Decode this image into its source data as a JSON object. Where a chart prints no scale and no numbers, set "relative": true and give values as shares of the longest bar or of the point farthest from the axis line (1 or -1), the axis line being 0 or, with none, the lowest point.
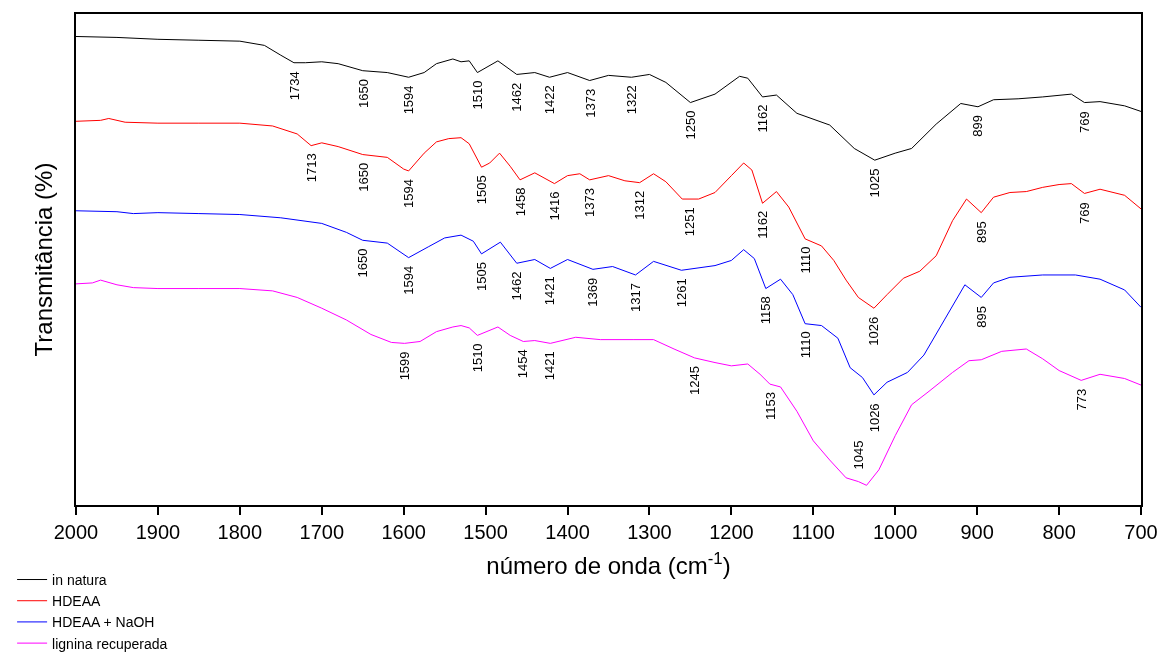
{
  "chart_data": {
    "type": "line",
    "xlabel": "número de onda (cm$^{-1}$)",
    "ylabel": "Transmitância (%)",
    "relative": true,
    "xlim": [
      2000,
      700
    ],
    "xticks": [
      2000,
      1900,
      1800,
      1700,
      1600,
      1500,
      1400,
      1300,
      1200,
      1100,
      1000,
      900,
      800,
      700
    ],
    "legend": "bottom left",
    "tick_labels": "x",
    "marker": "none",
    "line_style": "solid",
    "series": [
      {
        "name": "in natura",
        "color": "#000000",
        "x": [
          2000,
          1950,
          1900,
          1850,
          1800,
          1770,
          1750,
          1734,
          1720,
          1700,
          1680,
          1650,
          1620,
          1594,
          1575,
          1560,
          1540,
          1530,
          1520,
          1510,
          1485,
          1462,
          1440,
          1422,
          1400,
          1373,
          1350,
          1322,
          1300,
          1280,
          1250,
          1220,
          1190,
          1180,
          1162,
          1145,
          1120,
          1080,
          1050,
          1025,
          1000,
          980,
          950,
          920,
          899,
          880,
          850,
          820,
          785,
          769,
          750,
          720,
          700
        ],
        "values": [
          1.0,
          0.998,
          0.994,
          0.992,
          0.99,
          0.981,
          0.96,
          0.944,
          0.944,
          0.946,
          0.942,
          0.927,
          0.923,
          0.913,
          0.923,
          0.942,
          0.952,
          0.946,
          0.948,
          0.923,
          0.948,
          0.919,
          0.923,
          0.913,
          0.923,
          0.906,
          0.917,
          0.913,
          0.919,
          0.902,
          0.859,
          0.877,
          0.915,
          0.911,
          0.871,
          0.875,
          0.836,
          0.811,
          0.761,
          0.736,
          0.751,
          0.761,
          0.813,
          0.857,
          0.85,
          0.865,
          0.867,
          0.871,
          0.877,
          0.859,
          0.861,
          0.852,
          0.84
        ]
      },
      {
        "name": "HDEAA",
        "color": "#ff0000",
        "x": [
          2000,
          1970,
          1960,
          1940,
          1900,
          1850,
          1800,
          1760,
          1730,
          1713,
          1700,
          1680,
          1650,
          1620,
          1600,
          1594,
          1575,
          1560,
          1545,
          1530,
          1520,
          1505,
          1495,
          1483,
          1470,
          1458,
          1440,
          1416,
          1400,
          1385,
          1373,
          1350,
          1330,
          1312,
          1295,
          1280,
          1260,
          1240,
          1220,
          1200,
          1185,
          1175,
          1162,
          1145,
          1130,
          1110,
          1090,
          1075,
          1060,
          1045,
          1026,
          1010,
          990,
          970,
          950,
          930,
          913,
          895,
          880,
          860,
          840,
          820,
          800,
          785,
          769,
          750,
          720,
          700
        ],
        "values": [
          0.819,
          0.821,
          0.825,
          0.817,
          0.815,
          0.815,
          0.815,
          0.809,
          0.792,
          0.767,
          0.773,
          0.765,
          0.748,
          0.742,
          0.717,
          0.713,
          0.751,
          0.775,
          0.782,
          0.784,
          0.771,
          0.721,
          0.73,
          0.751,
          0.723,
          0.694,
          0.709,
          0.686,
          0.703,
          0.707,
          0.694,
          0.703,
          0.692,
          0.688,
          0.707,
          0.69,
          0.653,
          0.653,
          0.667,
          0.703,
          0.73,
          0.715,
          0.644,
          0.669,
          0.636,
          0.568,
          0.553,
          0.522,
          0.48,
          0.443,
          0.42,
          0.449,
          0.484,
          0.499,
          0.532,
          0.607,
          0.653,
          0.624,
          0.657,
          0.667,
          0.669,
          0.678,
          0.684,
          0.686,
          0.665,
          0.674,
          0.661,
          0.632
        ]
      },
      {
        "name": "HDEAA + NaOH",
        "color": "#0000ff",
        "x": [
          2000,
          1950,
          1930,
          1900,
          1850,
          1800,
          1750,
          1700,
          1670,
          1650,
          1620,
          1594,
          1570,
          1550,
          1530,
          1515,
          1505,
          1482,
          1462,
          1440,
          1421,
          1400,
          1369,
          1345,
          1317,
          1295,
          1261,
          1220,
          1200,
          1185,
          1172,
          1158,
          1140,
          1125,
          1110,
          1090,
          1070,
          1055,
          1040,
          1026,
          1010,
          985,
          965,
          940,
          915,
          895,
          880,
          860,
          820,
          780,
          750,
          720,
          700
        ],
        "values": [
          0.628,
          0.626,
          0.622,
          0.624,
          0.622,
          0.62,
          0.613,
          0.601,
          0.582,
          0.565,
          0.559,
          0.528,
          0.551,
          0.57,
          0.576,
          0.563,
          0.536,
          0.561,
          0.516,
          0.524,
          0.505,
          0.524,
          0.503,
          0.509,
          0.491,
          0.52,
          0.501,
          0.511,
          0.522,
          0.545,
          0.526,
          0.462,
          0.482,
          0.449,
          0.387,
          0.383,
          0.356,
          0.293,
          0.272,
          0.235,
          0.262,
          0.283,
          0.32,
          0.395,
          0.47,
          0.443,
          0.474,
          0.486,
          0.491,
          0.491,
          0.482,
          0.459,
          0.422
        ]
      },
      {
        "name": "lignina recuperada",
        "color": "#ff00ff",
        "x": [
          2000,
          1980,
          1970,
          1950,
          1930,
          1900,
          1850,
          1800,
          1760,
          1730,
          1700,
          1670,
          1640,
          1615,
          1599,
          1580,
          1560,
          1540,
          1530,
          1520,
          1510,
          1485,
          1470,
          1454,
          1440,
          1421,
          1390,
          1360,
          1320,
          1295,
          1270,
          1245,
          1220,
          1200,
          1180,
          1165,
          1153,
          1140,
          1120,
          1100,
          1080,
          1060,
          1045,
          1035,
          1020,
          1000,
          980,
          960,
          930,
          910,
          895,
          870,
          840,
          820,
          800,
          773,
          750,
          720,
          700
        ],
        "values": [
          0.472,
          0.474,
          0.48,
          0.47,
          0.464,
          0.462,
          0.462,
          0.462,
          0.457,
          0.443,
          0.42,
          0.395,
          0.364,
          0.347,
          0.345,
          0.349,
          0.37,
          0.38,
          0.383,
          0.378,
          0.362,
          0.38,
          0.362,
          0.349,
          0.351,
          0.345,
          0.358,
          0.353,
          0.353,
          0.353,
          0.333,
          0.314,
          0.304,
          0.297,
          0.301,
          0.279,
          0.258,
          0.252,
          0.2,
          0.137,
          0.096,
          0.058,
          0.05,
          0.042,
          0.075,
          0.148,
          0.214,
          0.241,
          0.283,
          0.308,
          0.31,
          0.328,
          0.333,
          0.312,
          0.287,
          0.266,
          0.279,
          0.27,
          0.256
        ]
      }
    ],
    "annotations": [
      {
        "text": "1734",
        "x": 1734,
        "y": 0.944
      },
      {
        "text": "1650",
        "x": 1650,
        "y": 0.927
      },
      {
        "text": "1594",
        "x": 1594,
        "y": 0.913
      },
      {
        "text": "1510",
        "x": 1510,
        "y": 0.923
      },
      {
        "text": "1462",
        "x": 1462,
        "y": 0.919
      },
      {
        "text": "1422",
        "x": 1422,
        "y": 0.913
      },
      {
        "text": "1373",
        "x": 1373,
        "y": 0.906
      },
      {
        "text": "1322",
        "x": 1322,
        "y": 0.913
      },
      {
        "text": "1250",
        "x": 1250,
        "y": 0.859
      },
      {
        "text": "1162",
        "x": 1162,
        "y": 0.871
      },
      {
        "text": "1025",
        "x": 1025,
        "y": 0.736
      },
      {
        "text": "899",
        "x": 899,
        "y": 0.85
      },
      {
        "text": "769",
        "x": 769,
        "y": 0.859
      },
      {
        "text": "1713",
        "x": 1713,
        "y": 0.767
      },
      {
        "text": "1650",
        "x": 1650,
        "y": 0.748
      },
      {
        "text": "1594",
        "x": 1594,
        "y": 0.713
      },
      {
        "text": "1505",
        "x": 1505,
        "y": 0.721
      },
      {
        "text": "1458",
        "x": 1458,
        "y": 0.694
      },
      {
        "text": "1416",
        "x": 1416,
        "y": 0.686
      },
      {
        "text": "1373",
        "x": 1373,
        "y": 0.694
      },
      {
        "text": "1312",
        "x": 1312,
        "y": 0.688
      },
      {
        "text": "1251",
        "x": 1251,
        "y": 0.653
      },
      {
        "text": "1162",
        "x": 1162,
        "y": 0.644
      },
      {
        "text": "1110",
        "x": 1110,
        "y": 0.568
      },
      {
        "text": "1026",
        "x": 1026,
        "y": 0.42
      },
      {
        "text": "895",
        "x": 895,
        "y": 0.624
      },
      {
        "text": "769",
        "x": 769,
        "y": 0.665
      },
      {
        "text": "1650",
        "x": 1650,
        "y": 0.565
      },
      {
        "text": "1594",
        "x": 1594,
        "y": 0.528
      },
      {
        "text": "1505",
        "x": 1505,
        "y": 0.536
      },
      {
        "text": "1462",
        "x": 1462,
        "y": 0.516
      },
      {
        "text": "1421",
        "x": 1421,
        "y": 0.505
      },
      {
        "text": "1369",
        "x": 1369,
        "y": 0.503
      },
      {
        "text": "1317",
        "x": 1317,
        "y": 0.491
      },
      {
        "text": "1261",
        "x": 1261,
        "y": 0.501
      },
      {
        "text": "1158",
        "x": 1158,
        "y": 0.462
      },
      {
        "text": "1110",
        "x": 1110,
        "y": 0.387
      },
      {
        "text": "1026",
        "x": 1026,
        "y": 0.235
      },
      {
        "text": "895",
        "x": 895,
        "y": 0.443
      },
      {
        "text": "1599",
        "x": 1599,
        "y": 0.345
      },
      {
        "text": "1510",
        "x": 1510,
        "y": 0.362
      },
      {
        "text": "1454",
        "x": 1454,
        "y": 0.349
      },
      {
        "text": "1421",
        "x": 1421,
        "y": 0.345
      },
      {
        "text": "1245",
        "x": 1245,
        "y": 0.314
      },
      {
        "text": "1153",
        "x": 1153,
        "y": 0.258
      },
      {
        "text": "1045",
        "x": 1045,
        "y": 0.05
      },
      {
        "text": "773",
        "x": 773,
        "y": 0.266
      }
    ]
  }
}
